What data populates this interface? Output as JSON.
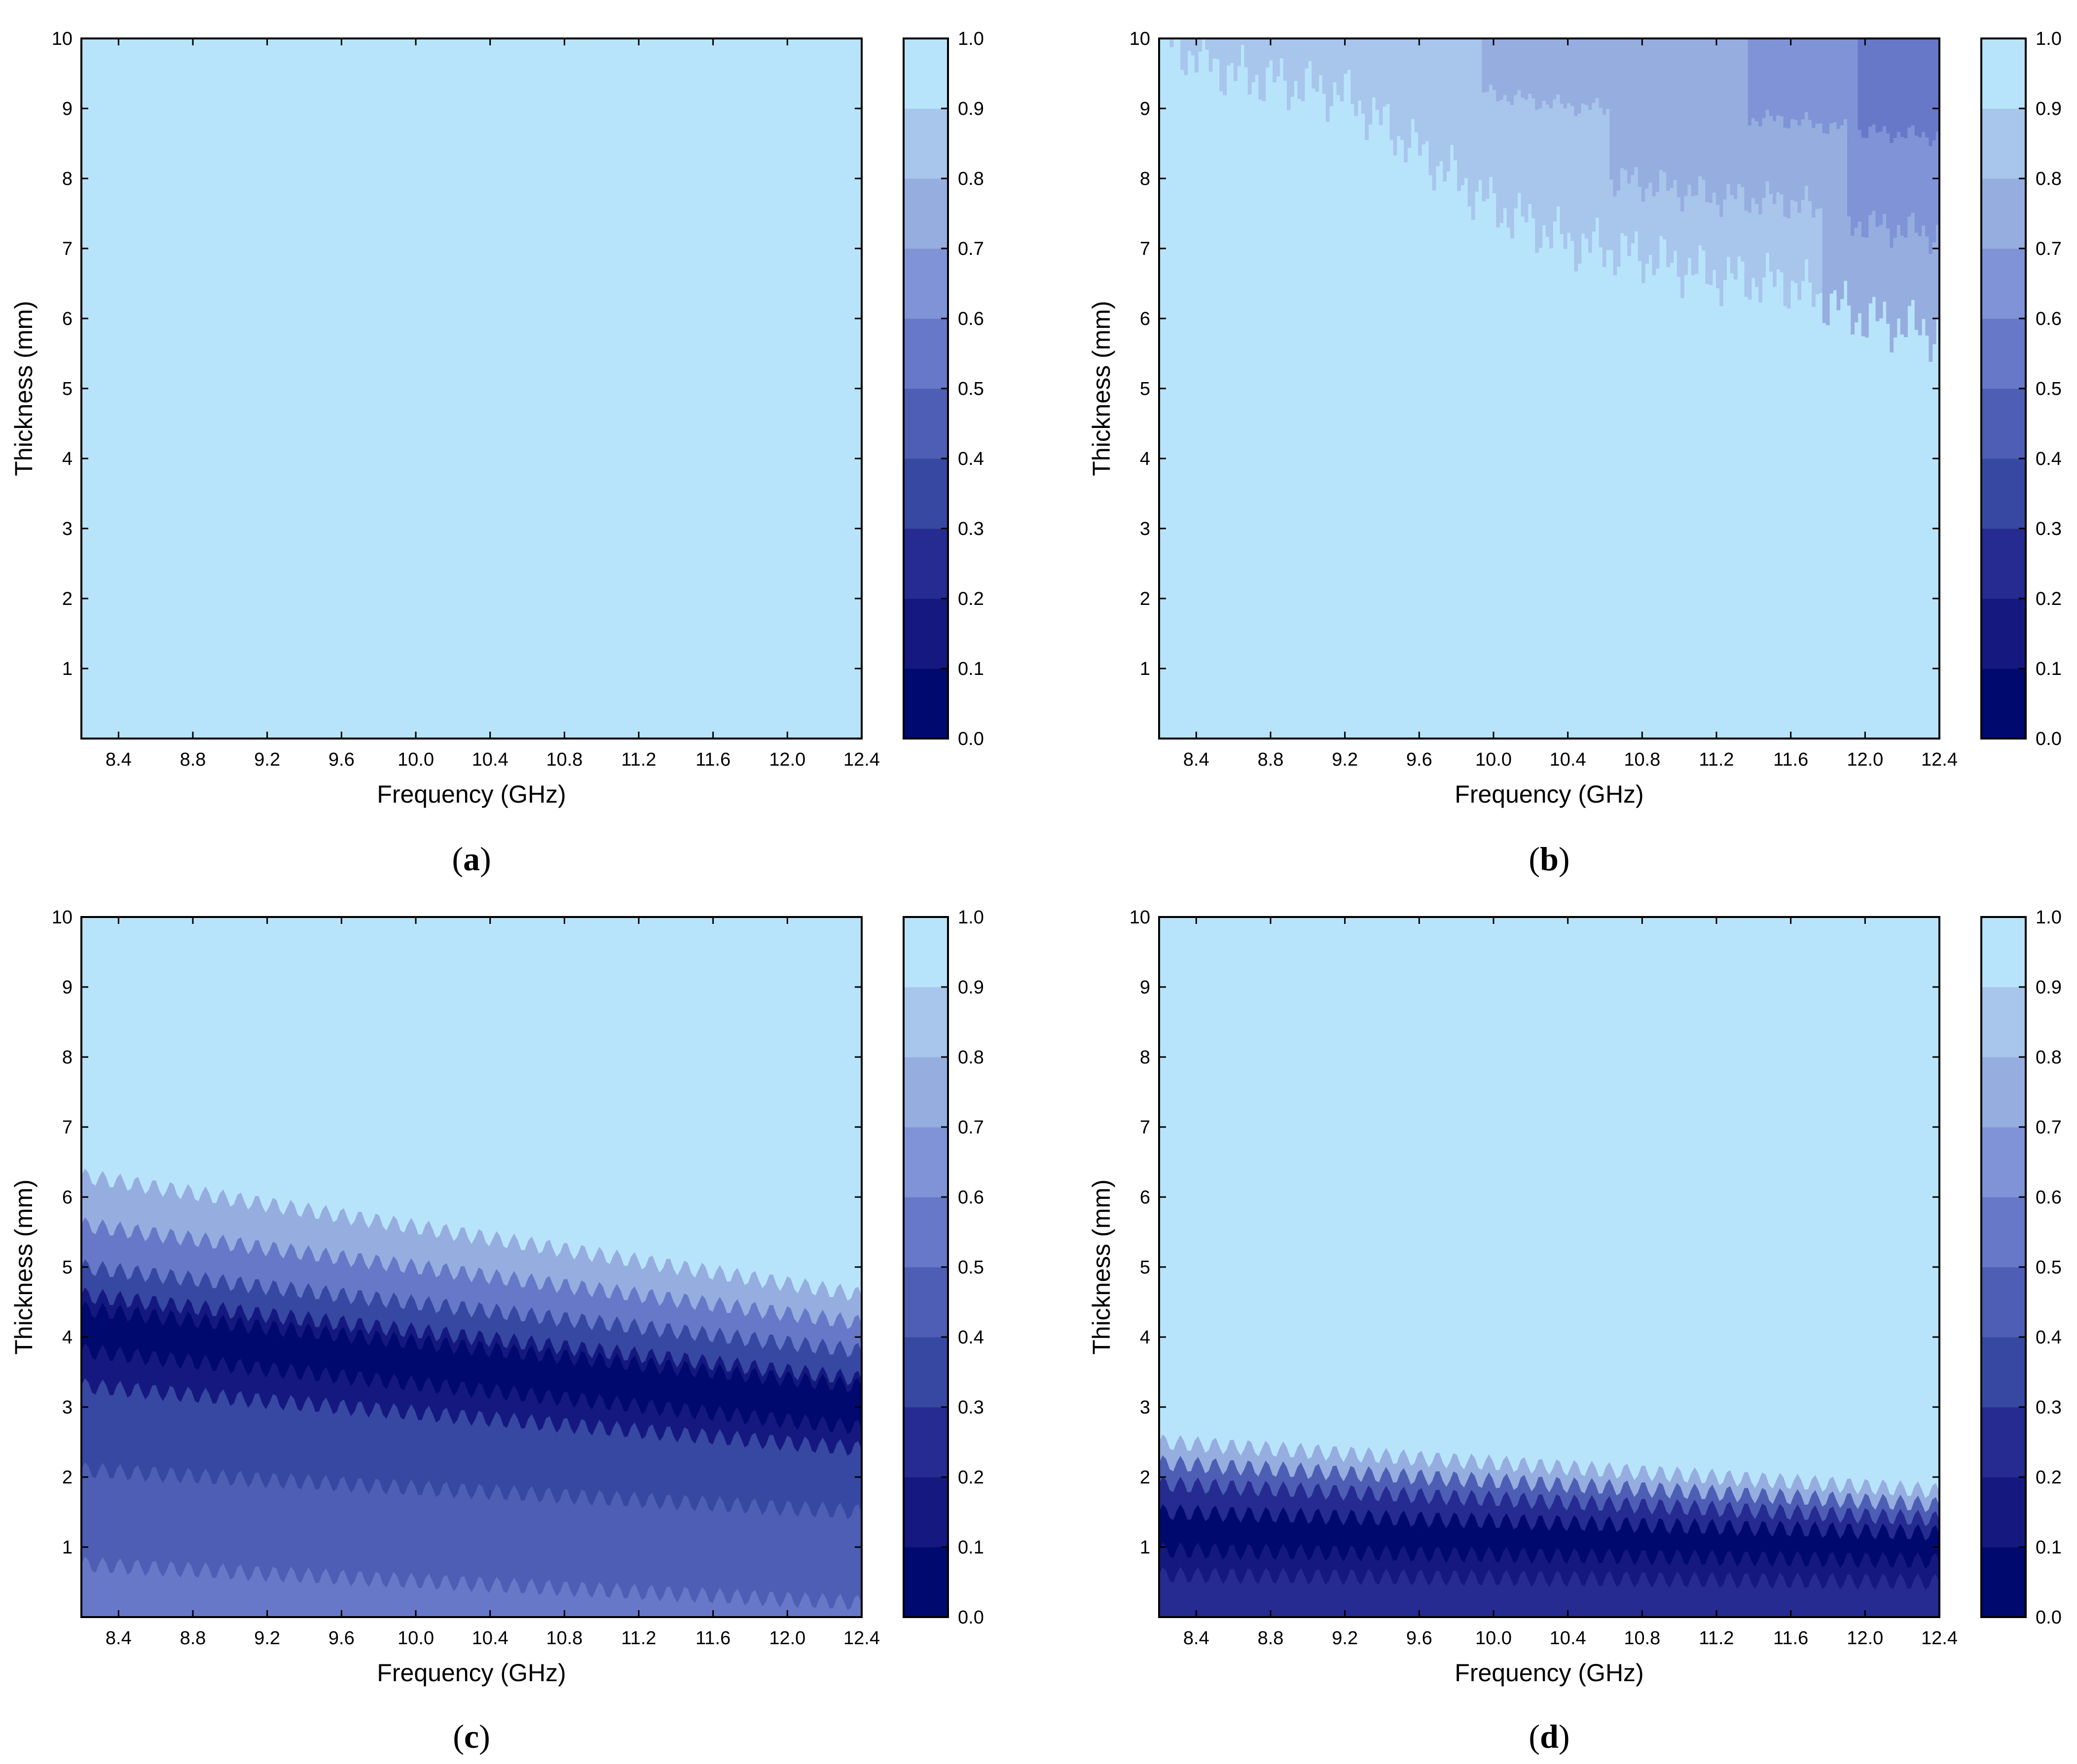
{
  "colorscale": [
    "#000a6e",
    "#15197f",
    "#252b91",
    "#3748a2",
    "#4e5eb4",
    "#6778c8",
    "#7f93d6",
    "#96addf",
    "#a8c5ec",
    "#b8e4fb"
  ],
  "chart_data": [
    {
      "type": "heatmap",
      "panel_label": "a",
      "xlabel": "Frequency (GHz)",
      "ylabel": "Thickness (mm)",
      "xlim": [
        8.2,
        12.4
      ],
      "ylim": [
        0,
        10
      ],
      "xticks": [
        "8.4",
        "8.8",
        "9.2",
        "9.6",
        "10.0",
        "10.4",
        "10.8",
        "11.2",
        "11.6",
        "12.0",
        "12.4"
      ],
      "yticks": [
        "1",
        "2",
        "3",
        "4",
        "5",
        "6",
        "7",
        "8",
        "9",
        "10"
      ],
      "colorbar_ticks": [
        "0.0",
        "0.1",
        "0.2",
        "0.3",
        "0.4",
        "0.5",
        "0.6",
        "0.7",
        "0.8",
        "0.9",
        "1.0"
      ],
      "colorbar_range": [
        0,
        1
      ],
      "field": {
        "model": "uniform",
        "value": 0.95
      }
    },
    {
      "type": "heatmap",
      "panel_label": "b",
      "xlabel": "Frequency (GHz)",
      "ylabel": "Thickness (mm)",
      "xlim": [
        8.2,
        12.4
      ],
      "ylim": [
        0,
        10
      ],
      "xticks": [
        "8.4",
        "8.8",
        "9.2",
        "9.6",
        "10.0",
        "10.4",
        "10.8",
        "11.2",
        "11.6",
        "12.0",
        "12.4"
      ],
      "yticks": [
        "1",
        "2",
        "3",
        "4",
        "5",
        "6",
        "7",
        "8",
        "9",
        "10"
      ],
      "colorbar_ticks": [
        "0.0",
        "0.1",
        "0.2",
        "0.3",
        "0.4",
        "0.5",
        "0.6",
        "0.7",
        "0.8",
        "0.9",
        "1.0"
      ],
      "colorbar_range": [
        0,
        1
      ],
      "field": {
        "model": "edge",
        "level_below_edge": 0.95,
        "edge_thickness_mm": {
          "f": [
            8.2,
            8.6,
            9.2,
            9.6,
            10.0,
            10.4,
            10.8,
            11.2,
            11.6,
            12.0,
            12.4
          ],
          "t": [
            10.0,
            9.5,
            9.2,
            8.4,
            7.6,
            7.1,
            6.9,
            6.6,
            6.5,
            6.0,
            5.8
          ]
        },
        "top_value": {
          "f": [
            8.2,
            9.6,
            10.8,
            11.6,
            12.4
          ],
          "v": [
            0.88,
            0.82,
            0.75,
            0.68,
            0.5
          ]
        }
      }
    },
    {
      "type": "heatmap",
      "panel_label": "c",
      "xlabel": "Frequency (GHz)",
      "ylabel": "Thickness (mm)",
      "xlim": [
        8.2,
        12.4
      ],
      "ylim": [
        0,
        10
      ],
      "xticks": [
        "8.4",
        "8.8",
        "9.2",
        "9.6",
        "10.0",
        "10.4",
        "10.8",
        "11.2",
        "11.6",
        "12.0",
        "12.4"
      ],
      "yticks": [
        "1",
        "2",
        "3",
        "4",
        "5",
        "6",
        "7",
        "8",
        "9",
        "10"
      ],
      "colorbar_ticks": [
        "0.0",
        "0.1",
        "0.2",
        "0.3",
        "0.4",
        "0.5",
        "0.6",
        "0.7",
        "0.8",
        "0.9",
        "1.0"
      ],
      "colorbar_range": [
        0,
        1
      ],
      "field": {
        "model": "bands",
        "transition_mm": {
          "f": [
            8.2,
            12.4
          ],
          "t": [
            6.3,
            4.6
          ]
        },
        "bands": [
          {
            "top_mm": [
              6.3,
              4.6
            ],
            "value": 0.75
          },
          {
            "top_mm": [
              5.6,
              4.2
            ],
            "value": 0.55
          },
          {
            "top_mm": [
              5.0,
              3.8
            ],
            "value": 0.35
          },
          {
            "top_mm": [
              4.6,
              3.4
            ],
            "value": 0.15
          },
          {
            "top_mm": [
              4.4,
              3.3
            ],
            "value": 0.05
          },
          {
            "top_mm": [
              3.8,
              2.7
            ],
            "value": 0.15
          },
          {
            "top_mm": [
              3.3,
              2.4
            ],
            "value": 0.35
          },
          {
            "top_mm": [
              2.1,
              1.5
            ],
            "value": 0.45
          },
          {
            "top_mm": [
              0.75,
              0.2
            ],
            "value": 0.55
          }
        ]
      }
    },
    {
      "type": "heatmap",
      "panel_label": "d",
      "xlabel": "Frequency (GHz)",
      "ylabel": "Thickness (mm)",
      "xlim": [
        8.2,
        12.4
      ],
      "ylim": [
        0,
        10
      ],
      "xticks": [
        "8.4",
        "8.8",
        "9.2",
        "9.6",
        "10.0",
        "10.4",
        "10.8",
        "11.2",
        "11.6",
        "12.0",
        "12.4"
      ],
      "yticks": [
        "1",
        "2",
        "3",
        "4",
        "5",
        "6",
        "7",
        "8",
        "9",
        "10"
      ],
      "colorbar_ticks": [
        "0.0",
        "0.1",
        "0.2",
        "0.3",
        "0.4",
        "0.5",
        "0.6",
        "0.7",
        "0.8",
        "0.9",
        "1.0"
      ],
      "colorbar_range": [
        0,
        1
      ],
      "field": {
        "model": "bands",
        "transition_mm": {
          "f": [
            8.2,
            12.4
          ],
          "t": [
            2.5,
            1.8
          ]
        },
        "bands": [
          {
            "top_mm": [
              2.5,
              1.8
            ],
            "value": 0.75
          },
          {
            "top_mm": [
              2.2,
              1.6
            ],
            "value": 0.45
          },
          {
            "top_mm": [
              1.9,
              1.4
            ],
            "value": 0.25
          },
          {
            "top_mm": [
              1.5,
              1.2
            ],
            "value": 0.05
          },
          {
            "top_mm": [
              0.95,
              0.8
            ],
            "value": 0.15
          },
          {
            "top_mm": [
              0.6,
              0.5
            ],
            "value": 0.25
          }
        ]
      }
    }
  ]
}
